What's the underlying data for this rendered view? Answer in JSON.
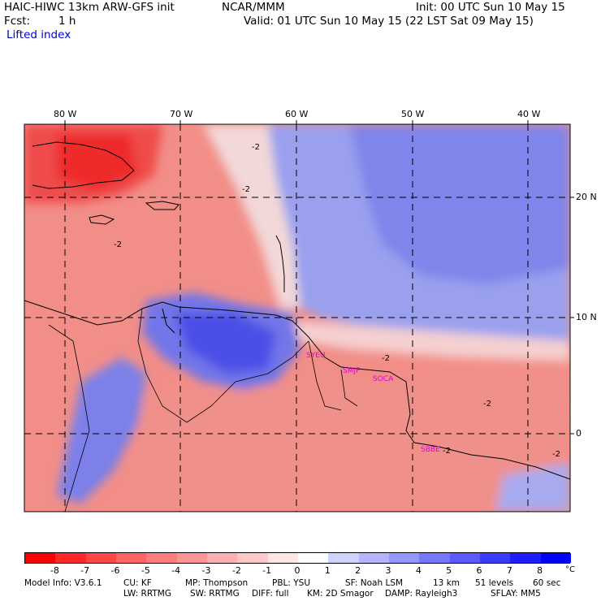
{
  "header": {
    "model_title": "HAIC-HIWC 13km ARW-GFS init",
    "org": "NCAR/MMM",
    "init": "Init: 00 UTC Sun 10 May 15",
    "fcst_label": "Fcst:",
    "fcst_value": "1 h",
    "valid": "Valid: 01 UTC Sun 10 May 15 (22 LST Sat 09 May 15)",
    "field": "Lifted index"
  },
  "map": {
    "lon_labels": [
      "80 W",
      "70 W",
      "60 W",
      "50 W",
      "40 W"
    ],
    "lat_labels": [
      "20 N",
      "10 N",
      "0"
    ],
    "contour_labels": [
      "-2",
      "-2",
      "-2",
      "-2",
      "-2",
      "-2",
      "-2"
    ],
    "stations": [
      "SYEU",
      "SMJP",
      "SOCA",
      "SBBE"
    ],
    "colors": {
      "neg_strong": "#ff1e1e",
      "neg_mid": "#f4827a",
      "neutral": "#f6dcdc",
      "pos_mid": "#8d93ec",
      "pos_strong": "#2d2ef0",
      "station": "#e000e0"
    }
  },
  "colorbar": {
    "values": [
      "-8",
      "-7",
      "-6",
      "-5",
      "-4",
      "-3",
      "-2",
      "-1",
      "0",
      "1",
      "2",
      "3",
      "4",
      "5",
      "6",
      "7",
      "8"
    ],
    "unit": "°C",
    "colors": [
      "#ff0000",
      "#ff2828",
      "#ff4646",
      "#ff6464",
      "#ff7d7d",
      "#ff9696",
      "#ffafaf",
      "#ffc8c8",
      "#ffe6e6",
      "#ffffff",
      "#d2d2ff",
      "#b4b4ff",
      "#9696ff",
      "#7878ff",
      "#5a5aff",
      "#3c3cff",
      "#1e1eff",
      "#0000ff"
    ]
  },
  "footer": {
    "line1": {
      "model_info": "Model Info: V3.6.1",
      "cu": "CU: KF",
      "mp": "MP: Thompson",
      "pbl": "PBL: YSU",
      "sf": "SF: Noah LSM",
      "res": "13 km",
      "levels": "51 levels",
      "dt": "60 sec"
    },
    "line2": {
      "lw": "LW: RRTMG",
      "sw": "SW: RRTMG",
      "diff": "DIFF: full",
      "km": "KM: 2D Smagor",
      "damp": "DAMP: Rayleigh3",
      "sflay": "SFLAY: MM5"
    }
  }
}
